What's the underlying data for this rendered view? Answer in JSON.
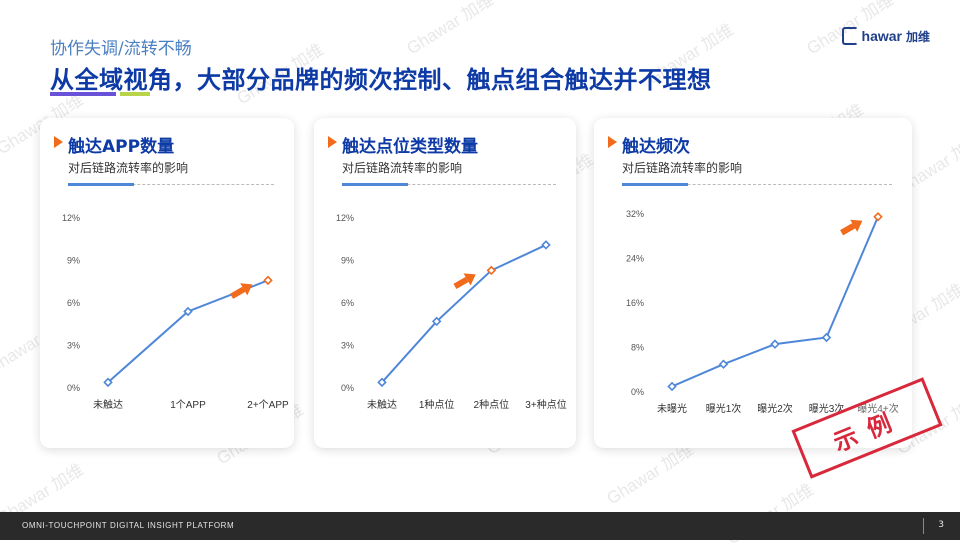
{
  "header": {
    "subtitle": "协作失调/流转不畅",
    "title": "从全域视角，大部分品牌的频次控制、触点组合触达并不理想"
  },
  "logo": {
    "text": "hawar",
    "cn": "加维"
  },
  "colors": {
    "accent": "#0d3aa5",
    "line": "#4f87d8",
    "highlight": "#f26a1b",
    "stamp": "#d8283c"
  },
  "cards": [
    {
      "title": "触达APP数量",
      "sub": "对后链路流转率的影响"
    },
    {
      "title": "触达点位类型数量",
      "sub": "对后链路流转率的影响"
    },
    {
      "title": "触达频次",
      "sub": "对后链路流转率的影响"
    }
  ],
  "chart_data": [
    {
      "type": "line",
      "categories": [
        "未触达",
        "1个APP",
        "2+个APP"
      ],
      "values": [
        0.4,
        5.4,
        7.6
      ],
      "ylim": [
        0,
        12
      ],
      "ticks": [
        "0%",
        "3%",
        "6%",
        "9%",
        "12%"
      ],
      "tick_values": [
        0,
        3,
        6,
        9,
        12
      ],
      "highlight_index": 2
    },
    {
      "type": "line",
      "categories": [
        "未触达",
        "1种点位",
        "2种点位",
        "3+种点位"
      ],
      "values": [
        0.4,
        4.7,
        8.3,
        10.1
      ],
      "ylim": [
        0,
        12
      ],
      "ticks": [
        "0%",
        "3%",
        "6%",
        "9%",
        "12%"
      ],
      "tick_values": [
        0,
        3,
        6,
        9,
        12
      ],
      "highlight_index": 2
    },
    {
      "type": "line",
      "categories": [
        "未曝光",
        "曝光1次",
        "曝光2次",
        "曝光3次",
        "曝光4+次"
      ],
      "values": [
        1.0,
        5.0,
        8.6,
        9.8,
        31.5
      ],
      "ylim": [
        0,
        32
      ],
      "ticks": [
        "0%",
        "8%",
        "16%",
        "24%",
        "32%"
      ],
      "tick_values": [
        0,
        8,
        16,
        24,
        32
      ],
      "highlight_index": 4
    }
  ],
  "stamp": "示例",
  "watermark": "Ghawar 加维",
  "footer": {
    "text": "OMNI-TOUCHPOINT   DIGITAL INSIGHT PLATFORM",
    "page": "3"
  }
}
